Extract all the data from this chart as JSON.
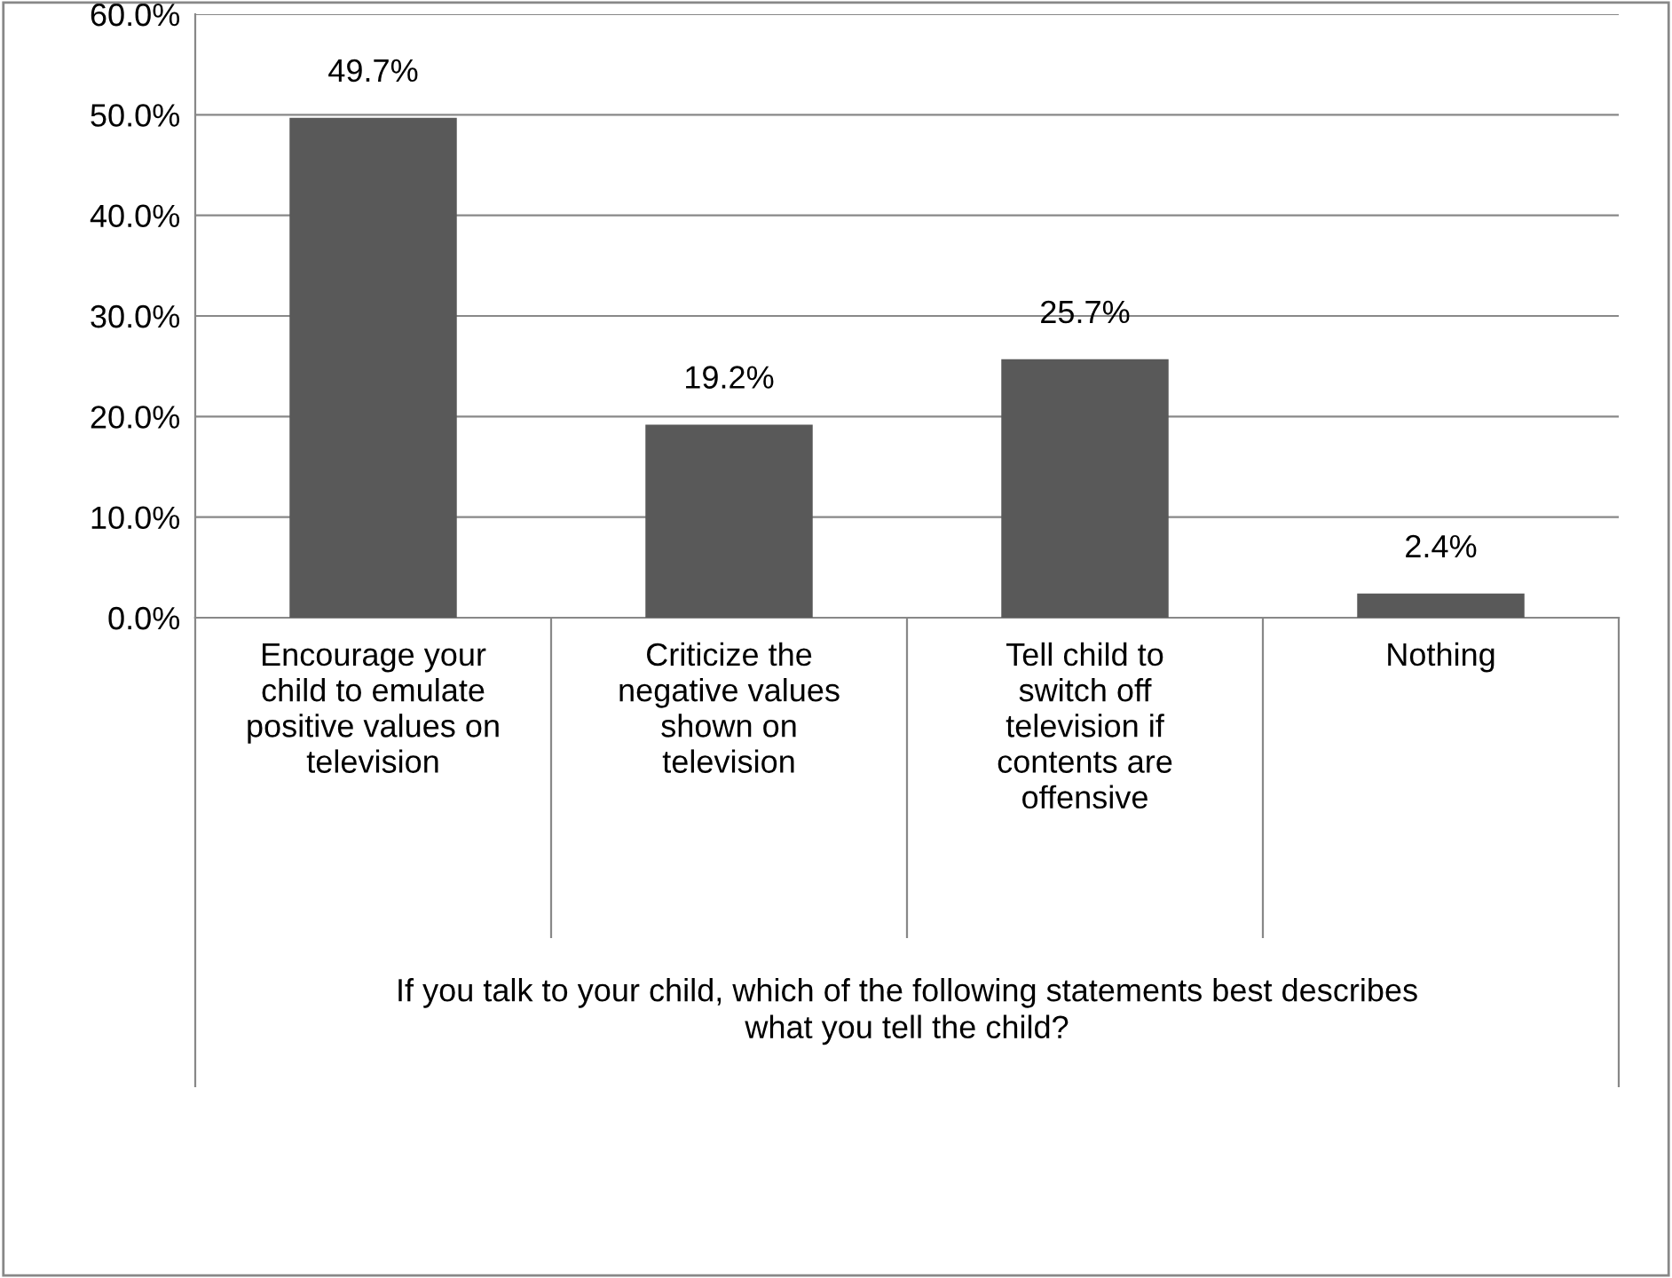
{
  "chart_data": {
    "type": "bar",
    "categories": [
      "Encourage your\nchild to emulate\npositive values on\ntelevision",
      "Criticize the\nnegative values\nshown on\ntelevision",
      "Tell child to\nswitch off\ntelevision if\ncontents are\noffensive",
      "Nothing"
    ],
    "values": [
      49.7,
      19.2,
      25.7,
      2.4
    ],
    "value_labels": [
      "49.7%",
      "19.2%",
      "25.7%",
      "2.4%"
    ],
    "color": "#595959",
    "annotations": [
      "If you talk to your child, which of the following statements best describes\nwhat you tell the child?"
    ],
    "ylim": [
      0,
      60
    ],
    "yticks": [
      {
        "value": 0,
        "label": "0.0%"
      },
      {
        "value": 10,
        "label": "10.0%"
      },
      {
        "value": 20,
        "label": "20.0%"
      },
      {
        "value": 30,
        "label": "30.0%"
      },
      {
        "value": 40,
        "label": "40.0%"
      },
      {
        "value": 50,
        "label": "50.0%"
      },
      {
        "value": 60,
        "label": "60.0%"
      }
    ],
    "grid": "y"
  }
}
